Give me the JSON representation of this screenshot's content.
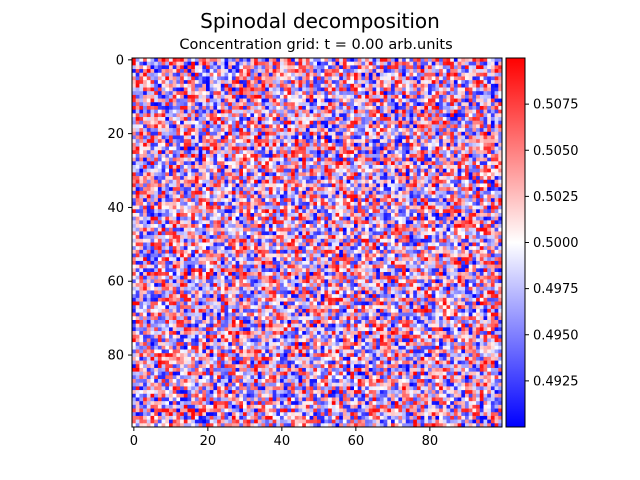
{
  "chart_data": {
    "type": "heatmap",
    "title": "Spinodal decomposition",
    "subtitle": "Concentration grid: t = 0.00 arb.units",
    "grid_size": [
      100,
      100
    ],
    "value_range": [
      0.49,
      0.51
    ],
    "colormap": "bwr",
    "colormap_stops": [
      "#0000ff",
      "#ffffff",
      "#ff0000"
    ],
    "x_ticks": [
      "0",
      "20",
      "40",
      "60",
      "80"
    ],
    "y_ticks": [
      "0",
      "20",
      "40",
      "60",
      "80"
    ],
    "x_tick_values": [
      0,
      20,
      40,
      60,
      80
    ],
    "y_tick_values": [
      0,
      20,
      40,
      60,
      80
    ],
    "colorbar_ticks": [
      "0.5075",
      "0.5050",
      "0.5025",
      "0.5000",
      "0.4975",
      "0.4950",
      "0.4925"
    ],
    "colorbar_tick_values": [
      0.5075,
      0.505,
      0.5025,
      0.5,
      0.4975,
      0.495,
      0.4925
    ],
    "noise_seed": 12345
  }
}
